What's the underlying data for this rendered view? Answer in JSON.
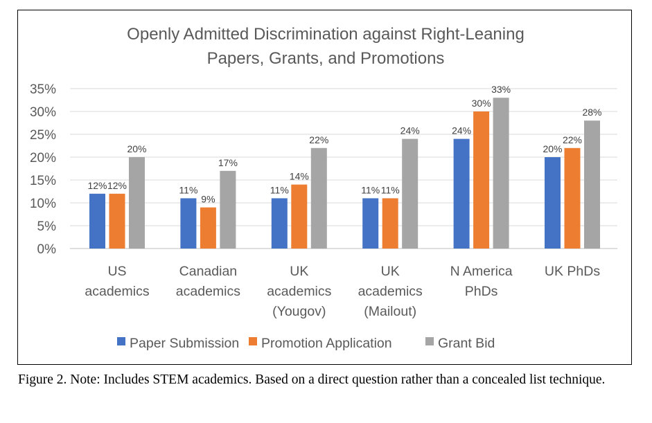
{
  "chart_data": {
    "type": "bar",
    "title_lines": [
      "Openly Admitted Discrimination against Right-Leaning",
      "Papers, Grants, and Promotions"
    ],
    "categories": [
      [
        "US",
        "academics"
      ],
      [
        "Canadian",
        "academics"
      ],
      [
        "UK",
        "academics",
        "(Yougov)"
      ],
      [
        "UK",
        "academics",
        "(Mailout)"
      ],
      [
        "N America",
        "PhDs"
      ],
      [
        "UK PhDs"
      ]
    ],
    "series": [
      {
        "name": "Paper Submission",
        "color": "#4472C4",
        "values": [
          12,
          11,
          11,
          11,
          24,
          20
        ]
      },
      {
        "name": "Promotion Application",
        "color": "#ED7D31",
        "values": [
          12,
          9,
          14,
          11,
          30,
          22
        ]
      },
      {
        "name": "Grant Bid",
        "color": "#A5A5A5",
        "values": [
          20,
          17,
          22,
          24,
          33,
          28
        ]
      }
    ],
    "ylim": [
      0,
      35
    ],
    "yticks": [
      0,
      5,
      10,
      15,
      20,
      25,
      30,
      35
    ],
    "ytick_suffix": "%",
    "grid": true,
    "legend_position": "bottom"
  },
  "caption": "Figure 2. Note: Includes STEM academics. Based on a direct question rather than a concealed list technique."
}
